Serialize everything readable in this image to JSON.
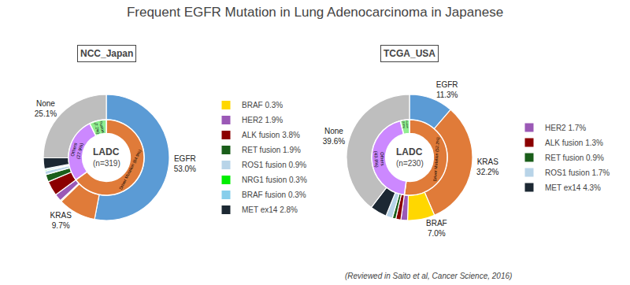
{
  "title": "Frequent EGFR Mutation in Lung Adenocarcinoma in Japanese",
  "annotations": [
    "(Reviewed in Saito et al, Cancer Science, 2016)"
  ],
  "chart_data": [
    {
      "type": "pie",
      "title": "NCC_Japan",
      "annotations": [
        "LADC",
        "(n=319)"
      ],
      "legend": "right",
      "data_labels": true,
      "series": [
        {
          "categories": [
            null,
            null,
            "BRAF 0.3%",
            "HER2 1.9%",
            "ALK fusion 3.8%",
            "RET fusion 1.9%",
            "ROS1 fusion 0.9%",
            "NRG1 fusion 0.3%",
            "BRAF fusion 0.3%",
            "MET ex14 2.8%",
            null
          ],
          "values": [
            53.0,
            9.7,
            0.3,
            1.9,
            3.8,
            1.9,
            0.9,
            0.3,
            0.3,
            2.8,
            25.1
          ],
          "colors": [
            "#5B9BD5",
            "#E07B39",
            "#FFD700",
            "#9B59B6",
            "#8B0000",
            "#1A5E1A",
            "#B8D4E8",
            "#00EE00",
            "#87CEEB",
            "#1C2833",
            "#BEBEBE"
          ],
          "value_labels": [
            "EGFR\n53.0%",
            "KRAS\n9.7%",
            null,
            null,
            null,
            null,
            null,
            null,
            null,
            null,
            "None\n25.1%"
          ]
        },
        {
          "values": [
            64.9,
            27.9,
            7.2
          ],
          "colors": [
            "#E07B39",
            "#CC88FF",
            "#90EE90"
          ],
          "value_labels": [
            "Driver Mutation (64.9%)",
            "Others\n(27.9%)",
            "Fusion\n(7.2%)"
          ]
        }
      ]
    },
    {
      "type": "pie",
      "title": "TCGA_USA",
      "annotations": [
        "LADC",
        "(n=230)"
      ],
      "legend": "right",
      "data_labels": true,
      "series": [
        {
          "categories": [
            null,
            null,
            null,
            "HER2 1.7%",
            "ALK fusion 1.3%",
            "RET fusion 0.9%",
            "ROS1 fusion 1.7%",
            "MET ex14 4.3%",
            null
          ],
          "values": [
            11.3,
            32.2,
            7.0,
            1.7,
            1.3,
            0.9,
            1.7,
            4.3,
            39.6
          ],
          "colors": [
            "#5B9BD5",
            "#E07B39",
            "#FFD700",
            "#9B59B6",
            "#8B0000",
            "#1A5E1A",
            "#B8D4E8",
            "#1C2833",
            "#BEBEBE"
          ],
          "value_labels": [
            "EGFR\n11.3%",
            "KRAS\n32.2%",
            "BRAF\n7.0%",
            null,
            null,
            null,
            null,
            null,
            "None\n39.6%"
          ]
        },
        {
          "values": [
            52.2,
            43.9,
            3.9
          ],
          "colors": [
            "#E07B39",
            "#CC88FF",
            "#90EE90"
          ],
          "value_labels": [
            "Driver Mutation (52.2%)",
            "Others\n(43.9%)",
            "Fusion\n(3.9%)"
          ]
        }
      ]
    }
  ]
}
